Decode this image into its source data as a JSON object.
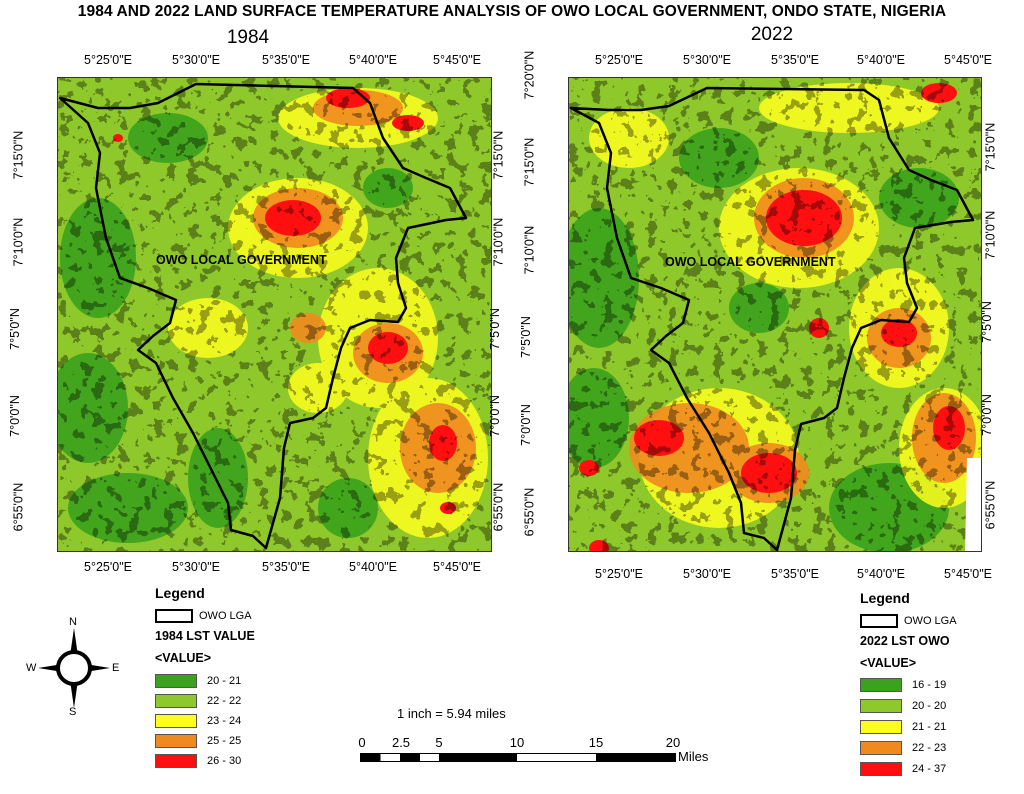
{
  "title": "1984 AND 2022 LAND SURFACE TEMPERATURE ANALYSIS OF OWO LOCAL GOVERNMENT, ONDO STATE, NIGERIA",
  "maps": [
    {
      "year": "1984",
      "region_label": "OWO LOCAL GOVERNMENT",
      "x_ticks": [
        "5°25'0\"E",
        "5°30'0\"E",
        "5°35'0\"E",
        "5°40'0\"E",
        "5°45'0\"E"
      ],
      "y_ticks": [
        "7°15'0\"N",
        "7°10'0\"N",
        "7°5'0\"N",
        "7°0'0\"N",
        "6°55'0\"N"
      ],
      "legend": {
        "title": "Legend",
        "boundary_label": "OWO LGA",
        "layer_title": "1984 LST VALUE",
        "value_header": "<VALUE>",
        "classes": [
          {
            "label": "20 - 21",
            "color": "#3aa21c"
          },
          {
            "label": "22 - 22",
            "color": "#8fc82a"
          },
          {
            "label": "23 - 24",
            "color": "#ffff1e"
          },
          {
            "label": "25 - 25",
            "color": "#f08a1e"
          },
          {
            "label": "26 - 30",
            "color": "#ff0f0f"
          }
        ]
      }
    },
    {
      "year": "2022",
      "region_label": "OWO LOCAL GOVERNMENT",
      "x_ticks": [
        "5°25'0\"E",
        "5°30'0\"E",
        "5°35'0\"E",
        "5°40'0\"E",
        "5°45'0\"E"
      ],
      "y_ticks": [
        "7°20'0\"N",
        "7°15'0\"N",
        "7°10'0\"N",
        "7°5'0\"N",
        "7°0'0\"N",
        "6°55'0\"N"
      ],
      "legend": {
        "title": "Legend",
        "boundary_label": "OWO LGA",
        "layer_title": "2022 LST OWO",
        "value_header": "<VALUE>",
        "classes": [
          {
            "label": "16 - 19",
            "color": "#3aa21c"
          },
          {
            "label": "20 - 20",
            "color": "#8fc82a"
          },
          {
            "label": "21 - 21",
            "color": "#ffff1e"
          },
          {
            "label": "22 - 23",
            "color": "#f08a1e"
          },
          {
            "label": "24 - 37",
            "color": "#ff0f0f"
          }
        ]
      }
    }
  ],
  "compass": {
    "n": "N",
    "s": "S",
    "e": "E",
    "w": "W"
  },
  "scale": {
    "ratio_text": "1 inch = 5.94 miles",
    "ticks": [
      "0",
      "2.5",
      "5",
      "10",
      "15",
      "20"
    ],
    "unit": "Miles"
  }
}
